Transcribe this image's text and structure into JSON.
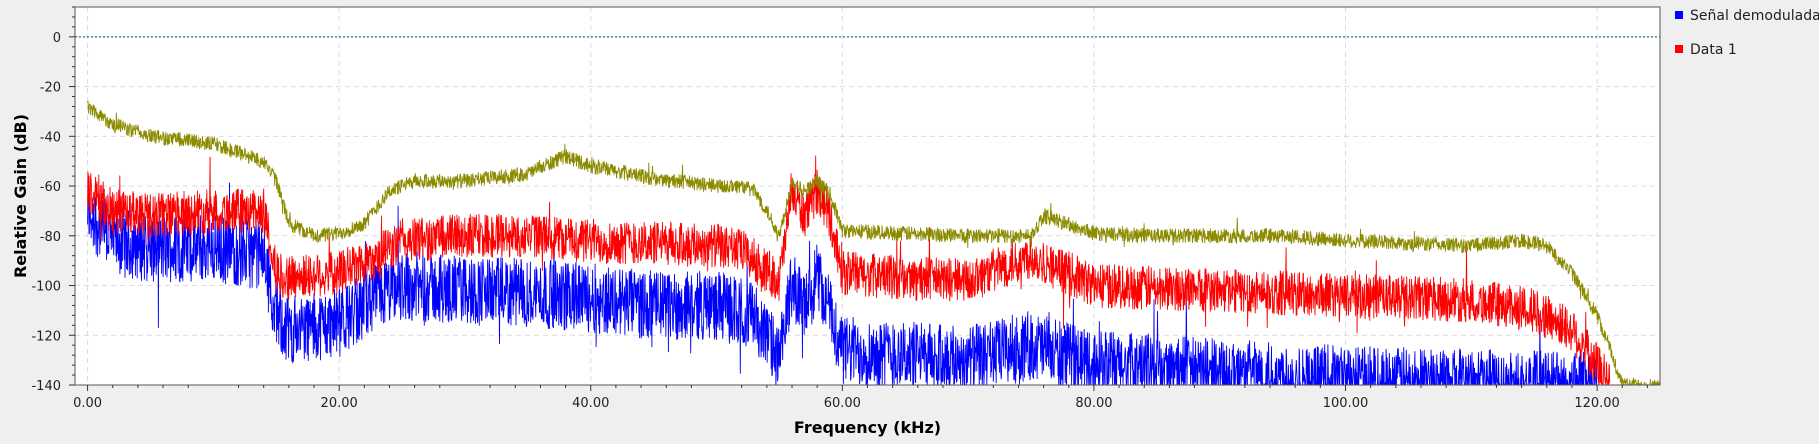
{
  "chart_data": {
    "type": "line",
    "xlabel": "Frequency (kHz)",
    "ylabel": "Relative Gain (dB)",
    "xlim": [
      -1,
      125
    ],
    "ylim": [
      -140,
      12
    ],
    "x_ticks": [
      {
        "value": 0,
        "label": "0.00"
      },
      {
        "value": 20,
        "label": "20.00"
      },
      {
        "value": 40,
        "label": "40.00"
      },
      {
        "value": 60,
        "label": "60.00"
      },
      {
        "value": 80,
        "label": "80.00"
      },
      {
        "value": 100,
        "label": "100.00"
      },
      {
        "value": 120,
        "label": "120.00"
      }
    ],
    "y_ticks": [
      {
        "value": 0,
        "label": "0"
      },
      {
        "value": -20,
        "label": "-20"
      },
      {
        "value": -40,
        "label": "-40"
      },
      {
        "value": -60,
        "label": "-60"
      },
      {
        "value": -80,
        "label": "-80"
      },
      {
        "value": -100,
        "label": "-100"
      },
      {
        "value": -120,
        "label": "-120"
      },
      {
        "value": -140,
        "label": "-140"
      }
    ],
    "grid": true,
    "legend_position": "right",
    "reference_line": {
      "y": 0,
      "color": "#1f7a9e"
    },
    "series": [
      {
        "name": "Señal demodulada",
        "color": "#0000ff",
        "noise_db": 14,
        "x": [
          0,
          2,
          5,
          10,
          14,
          15,
          16,
          20,
          23,
          25,
          30,
          35,
          40,
          45,
          50,
          53,
          55,
          56,
          57,
          58,
          59,
          60,
          65,
          70,
          75,
          80,
          90,
          100,
          110,
          115,
          120
        ],
        "y": [
          -70,
          -82,
          -85,
          -85,
          -88,
          -112,
          -118,
          -115,
          -105,
          -100,
          -102,
          -103,
          -105,
          -108,
          -108,
          -112,
          -130,
          -98,
          -110,
          -96,
          -110,
          -126,
          -128,
          -130,
          -124,
          -132,
          -135,
          -138,
          -139,
          -140,
          -140
        ]
      },
      {
        "name": "Data 1",
        "color": "#ff0000",
        "noise_db": 9,
        "x": [
          0,
          2,
          5,
          10,
          14,
          15,
          16,
          20,
          23,
          25,
          30,
          35,
          40,
          45,
          50,
          52,
          53,
          55,
          56,
          57,
          58,
          59,
          60,
          65,
          70,
          75,
          80,
          90,
          100,
          110,
          115,
          118,
          120,
          121
        ],
        "y": [
          -62,
          -70,
          -72,
          -70,
          -70,
          -95,
          -97,
          -95,
          -88,
          -82,
          -80,
          -80,
          -82,
          -83,
          -84,
          -86,
          -90,
          -98,
          -62,
          -72,
          -62,
          -72,
          -95,
          -97,
          -98,
          -88,
          -100,
          -102,
          -104,
          -106,
          -110,
          -118,
          -132,
          -140
        ]
      },
      {
        "name": "",
        "color": "#8b8b00",
        "noise_db": 3,
        "x": [
          0,
          2,
          5,
          10,
          14,
          15,
          16,
          18,
          20,
          22,
          24,
          26,
          30,
          35,
          38,
          40,
          45,
          50,
          52,
          53,
          54,
          55,
          56,
          57,
          58,
          59,
          60,
          65,
          70,
          75,
          76,
          80,
          85,
          90,
          95,
          100,
          105,
          110,
          114,
          116,
          118,
          120,
          121,
          122,
          125
        ],
        "y": [
          -28,
          -35,
          -40,
          -43,
          -50,
          -58,
          -75,
          -80,
          -79,
          -75,
          -62,
          -58,
          -58,
          -55,
          -48,
          -52,
          -57,
          -60,
          -60,
          -62,
          -70,
          -80,
          -58,
          -62,
          -58,
          -63,
          -78,
          -79,
          -80,
          -80,
          -72,
          -79,
          -80,
          -80,
          -80,
          -82,
          -83,
          -84,
          -82,
          -84,
          -95,
          -112,
          -125,
          -140,
          -140
        ]
      }
    ]
  }
}
